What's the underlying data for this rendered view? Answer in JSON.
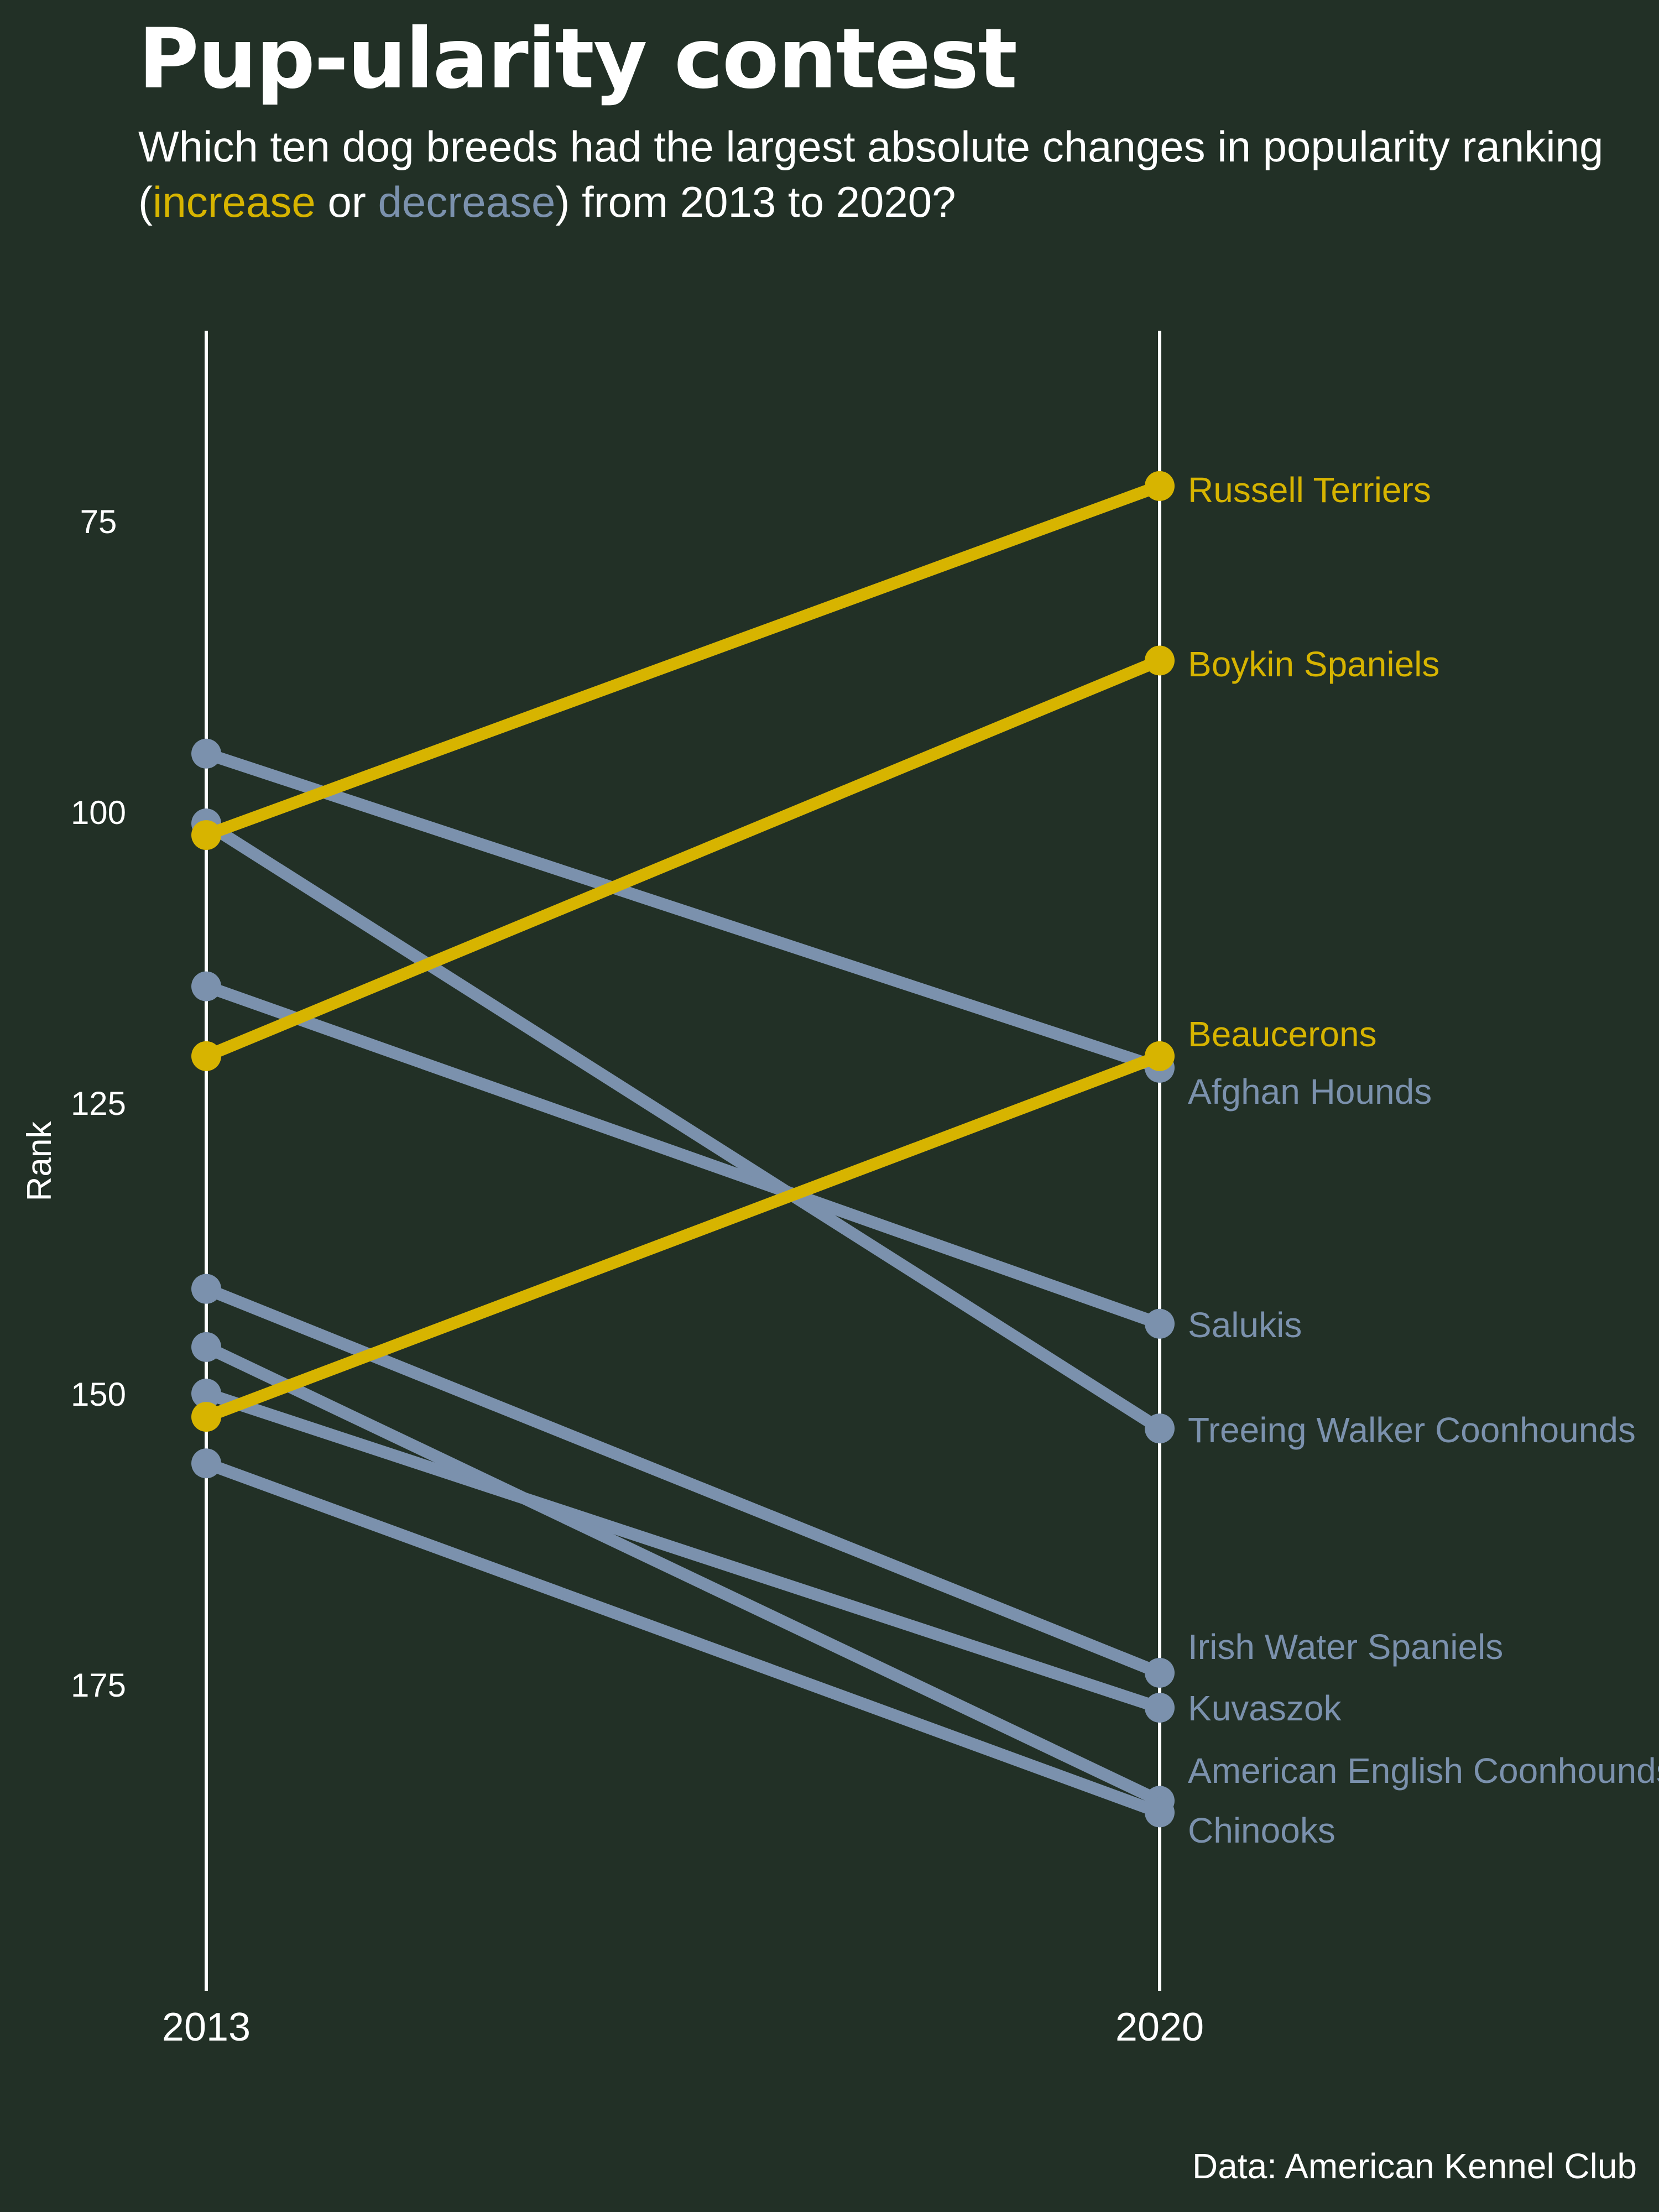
{
  "title": "Pup-ularity contest",
  "subtitle": {
    "line1": "Which ten dog breeds had the largest absolute changes in popularity ranking",
    "open_paren": "(",
    "increase": "increase",
    "or": " or ",
    "decrease": "decrease",
    "tail": ") from 2013 to 2020?"
  },
  "caption": "Data: American Kennel Club",
  "colors": {
    "background": "#223026",
    "increase": "#d7b400",
    "decrease": "#7b91ad",
    "text": "#ffffff"
  },
  "chart_data": {
    "type": "line",
    "x": [
      "2013",
      "2020"
    ],
    "ylabel": "Rank",
    "y_ticks": [
      75,
      100,
      125,
      150,
      175
    ],
    "ylim": [
      60,
      205
    ],
    "y_reversed": true,
    "grid": false,
    "series": [
      {
        "name": "Russell Terriers",
        "direction": "increase",
        "values": [
          102,
          72
        ]
      },
      {
        "name": "Boykin Spaniels",
        "direction": "increase",
        "values": [
          121,
          87
        ]
      },
      {
        "name": "Beaucerons",
        "direction": "increase",
        "values": [
          152,
          121
        ]
      },
      {
        "name": "Afghan Hounds",
        "direction": "decrease",
        "values": [
          95,
          122
        ]
      },
      {
        "name": "Salukis",
        "direction": "decrease",
        "values": [
          115,
          144
        ]
      },
      {
        "name": "Treeing Walker Coonhounds",
        "direction": "decrease",
        "values": [
          101,
          153
        ]
      },
      {
        "name": "Irish Water Spaniels",
        "direction": "decrease",
        "values": [
          141,
          174
        ]
      },
      {
        "name": "Kuvaszok",
        "direction": "decrease",
        "values": [
          150,
          177
        ]
      },
      {
        "name": "American English Coonhounds",
        "direction": "decrease",
        "values": [
          146,
          185
        ]
      },
      {
        "name": "Chinooks",
        "direction": "decrease",
        "values": [
          156,
          186
        ]
      }
    ]
  }
}
